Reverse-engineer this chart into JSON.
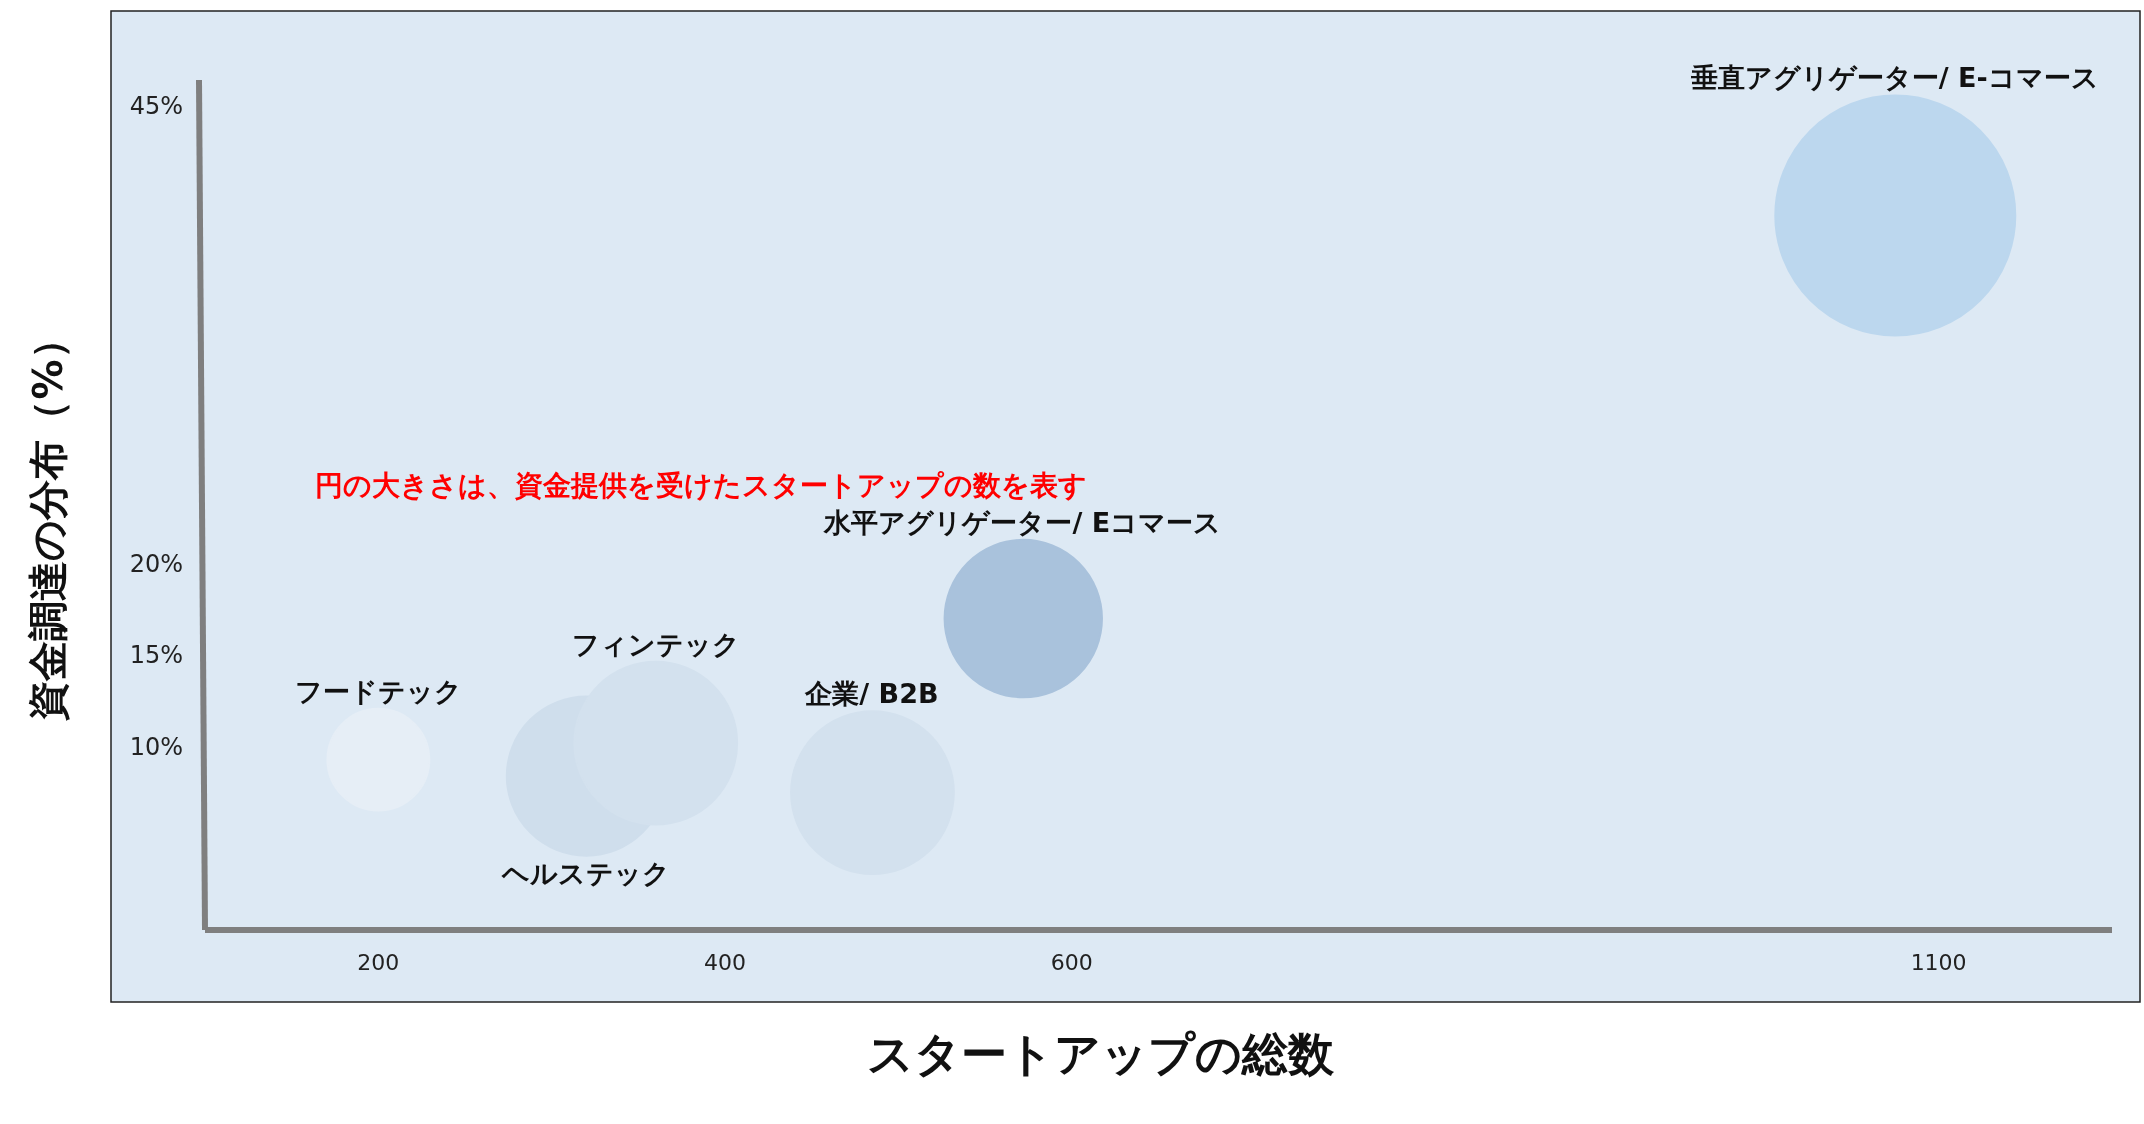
{
  "chart_data": {
    "type": "bubble",
    "xlabel": "スタートアップの総数",
    "ylabel": "資金調達の分布（%）",
    "xlim": [
      100,
      1200
    ],
    "ylim": [
      0,
      50
    ],
    "xticks": [
      200,
      400,
      600,
      1100
    ],
    "yticks": [
      {
        "value": 10,
        "label": "10%"
      },
      {
        "value": 15,
        "label": "15%"
      },
      {
        "value": 20,
        "label": "20%"
      },
      {
        "value": 45,
        "label": "45%"
      }
    ],
    "annotations": [
      "円の大きさは、資金提供を受けたスタートアップの数を表す"
    ],
    "series": [
      {
        "name": "フードテック",
        "color": "#e6eef6",
        "x": [
          200
        ],
        "values": [
          9.3
        ],
        "sizes": [
          0.18
        ]
      },
      {
        "name": "ヘルステック",
        "color": "#cfdeec",
        "x": [
          320
        ],
        "values": [
          8.4
        ],
        "sizes": [
          0.44
        ]
      },
      {
        "name": "フィンテック",
        "color": "#d3e1ee",
        "x": [
          360
        ],
        "values": [
          10.2
        ],
        "sizes": [
          0.46
        ]
      },
      {
        "name": "企業/ B2B",
        "color": "#d3e1ee",
        "x": [
          485
        ],
        "values": [
          7.5
        ],
        "sizes": [
          0.46
        ]
      },
      {
        "name": "水平アグリゲーター/ Eコマース",
        "color": "#a9c2dc",
        "x": [
          572
        ],
        "values": [
          17.0
        ],
        "sizes": [
          0.43
        ]
      },
      {
        "name": "垂直アグリゲーター/ E-コマース",
        "color": "#bcd7ee",
        "x": [
          1075
        ],
        "values": [
          39
        ],
        "sizes": [
          1
        ]
      }
    ]
  }
}
